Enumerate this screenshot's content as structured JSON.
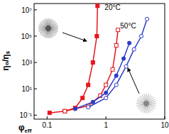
{
  "chart_data": {
    "type": "line",
    "log": true,
    "x_label": "φeff",
    "y_label": "η₀/ηₛ",
    "xlim": [
      0.06,
      10
    ],
    "ylim": [
      0.05,
      30000000
    ],
    "xticks": [
      0.1,
      1,
      10
    ],
    "yticks": [
      {
        "value": 0.1,
        "label": "10⁻¹"
      },
      {
        "value": 10,
        "label": "10¹"
      },
      {
        "value": 1000,
        "label": "10³"
      },
      {
        "value": 100000,
        "label": "10⁵"
      },
      {
        "value": 10000000,
        "label": "10⁷"
      }
    ],
    "annotations": [
      {
        "text": "20°C",
        "x": 0.95,
        "y": 10000000
      },
      {
        "text": "50°C",
        "x": 1.75,
        "y": 400000
      }
    ],
    "series": [
      {
        "color": "#e8141c",
        "marker": "filled-square",
        "x": [
          0.11,
          0.2,
          0.3,
          0.4,
          0.5,
          0.6,
          0.7,
          0.72
        ],
        "values": [
          0.15,
          0.2,
          0.35,
          2,
          20,
          1000,
          100000,
          20000000
        ]
      },
      {
        "color": "#e8141c",
        "marker": "open-square",
        "x": [
          0.2,
          0.5,
          0.8,
          1.0,
          1.3,
          1.5,
          1.6
        ],
        "values": [
          0.2,
          0.5,
          3,
          20,
          300,
          20000,
          300000
        ]
      },
      {
        "color": "#2c3cc8",
        "marker": "filled-circle",
        "x": [
          0.3,
          0.6,
          1.0,
          1.5,
          2.0,
          2.5
        ],
        "values": [
          0.3,
          1,
          5,
          100,
          2000,
          30000
        ]
      },
      {
        "color": "#2c3cc8",
        "marker": "open-circle",
        "x": [
          0.5,
          1.0,
          1.5,
          2.2,
          3.0,
          4.0,
          5.0
        ],
        "values": [
          0.4,
          2,
          20,
          500,
          10000,
          100000,
          2000000
        ]
      }
    ]
  }
}
